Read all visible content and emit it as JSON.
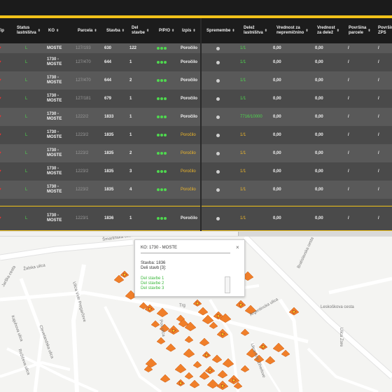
{
  "columns": [
    "Tip",
    "Status\nlastništva",
    "KO",
    "Parcela",
    "Stavba",
    "Del\nstavbe",
    "P/P/O",
    "Izpis",
    "Spremembe",
    "Delež\nlastništva",
    "Vrednost za\nnepremičnino",
    "Vrednost\nza delež",
    "Površina\nparcele",
    "Površina\nZPS"
  ],
  "rows": [
    {
      "tip": "♥",
      "status": "L",
      "ko": "MOSTE",
      "parcela": "127/193",
      "stavba": "630",
      "del": "122",
      "izpis": "Poročilo",
      "delez": "1/1",
      "vred": "0,00",
      "vdel": "0,00",
      "pp": "/",
      "pz": "/"
    },
    {
      "tip": "♥",
      "status": "L",
      "ko": "1730 -\nMOSTE",
      "parcela": "127/470",
      "stavba": "644",
      "del": "1",
      "izpis": "Poročilo",
      "delez": "1/1",
      "vred": "0,00",
      "vdel": "0,00",
      "pp": "/",
      "pz": "/"
    },
    {
      "tip": "♥",
      "status": "L",
      "ko": "1730 -\nMOSTE",
      "parcela": "127/470",
      "stavba": "644",
      "del": "2",
      "izpis": "Poročilo",
      "delez": "1/1",
      "vred": "0,00",
      "vdel": "0,00",
      "pp": "/",
      "pz": "/"
    },
    {
      "tip": "♥",
      "status": "L",
      "ko": "1730 -\nMOSTE",
      "parcela": "127/181",
      "stavba": "679",
      "del": "1",
      "izpis": "Poročilo",
      "delez": "1/1",
      "vred": "0,00",
      "vdel": "0,00",
      "pp": "/",
      "pz": "/"
    },
    {
      "tip": "♥",
      "status": "L",
      "ko": "1730 -\nMOSTE",
      "parcela": "1222/2",
      "stavba": "1833",
      "del": "1",
      "izpis": "Poročilo",
      "delez": "7716/10000",
      "vred": "0,00",
      "vdel": "0,00",
      "pp": "/",
      "pz": "/"
    },
    {
      "tip": "♥",
      "status": "L",
      "ko": "1730 -\nMOSTE",
      "parcela": "1223/2",
      "stavba": "1835",
      "del": "1",
      "izpis": "Poročilo",
      "delez": "1/1",
      "vred": "0,00",
      "vdel": "0,00",
      "pp": "/",
      "pz": "/"
    },
    {
      "tip": "♥",
      "status": "L",
      "ko": "1730 -\nMOSTE",
      "parcela": "1223/2",
      "stavba": "1835",
      "del": "2",
      "izpis": "Poročilo",
      "delez": "1/1",
      "vred": "0,00",
      "vdel": "0,00",
      "pp": "/",
      "pz": "/"
    },
    {
      "tip": "♥",
      "status": "L",
      "ko": "1730 -\nMOSTE",
      "parcela": "1223/2",
      "stavba": "1835",
      "del": "3",
      "izpis": "Poročilo",
      "delez": "1/1",
      "vred": "0,00",
      "vdel": "0,00",
      "pp": "/",
      "pz": "/"
    },
    {
      "tip": "♥",
      "status": "L",
      "ko": "1730 -\nMOSTE",
      "parcela": "1223/2",
      "stavba": "1835",
      "del": "4",
      "izpis": "Poročilo",
      "delez": "1/1",
      "vred": "0,00",
      "vdel": "0,00",
      "pp": "/",
      "pz": "/"
    },
    {
      "tip": "♥",
      "status": "L",
      "ko": "1730 -\nMOSTE",
      "parcela": "1223/1",
      "stavba": "1836",
      "del": "1",
      "izpis": "Poročilo",
      "delez": "1/1",
      "vred": "0,00",
      "vdel": "0,00",
      "pp": "/",
      "pz": "/"
    }
  ],
  "popup": {
    "title": "KO: 1730 - MOSTE",
    "close": "×",
    "stavba": "Stavba: 1836",
    "deli": "Deli stavb [3]:",
    "items": [
      "Del stavbe 1",
      "Del stavbe 2",
      "Del stavbe 3"
    ]
  },
  "streets": [
    "Šmartinska cesta",
    "Žalska ulica",
    "Jarška cesta",
    "Ulica Vide Pregarčeve",
    "Kajuhova ulica",
    "Rožičeva ulica",
    "Clevelandska ulica",
    "Bratislavska cesta",
    "Leskoškova cesta",
    "Argentinska ulica",
    "Trg",
    "Pod ulica",
    "Ulica Ane Ziherlove",
    "Ulica Zore"
  ],
  "colors": {
    "accent": "#f2c21a",
    "marker": "#f07f2a",
    "ok": "#4fd84f",
    "alert": "#e33333"
  },
  "icons": [
    "sort-icon",
    "heart-icon",
    "status-dots-icon",
    "radio-icon",
    "close-icon",
    "building-marker-icon"
  ]
}
